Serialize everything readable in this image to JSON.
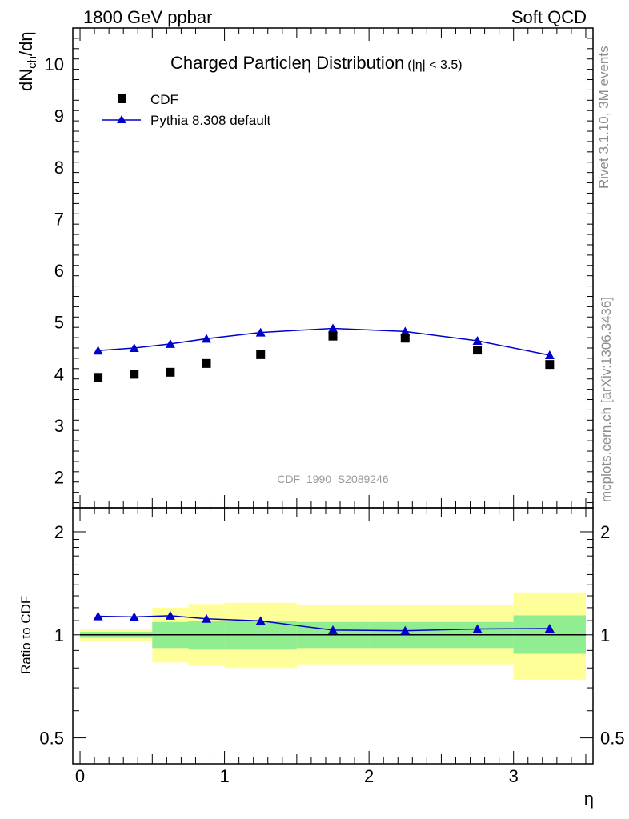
{
  "header": {
    "left": "1800 GeV ppbar",
    "right": "Soft QCD"
  },
  "side_labels": {
    "upper": "Rivet 3.1.10,  3M events",
    "lower": "mcplots.cern.ch [arXiv:1306.3436]"
  },
  "reference": "CDF_1990_S2089246",
  "chart_data": [
    {
      "type": "scatter",
      "title_main": "Charged Particle",
      "title_eta": "η",
      "title_rest": " Distribution",
      "title_cut": "(|η| < 3.5)",
      "ylabel": "dN",
      "ylabel_sub": "ch",
      "ylabel_tail": "/dη",
      "xlim": [
        -0.05,
        3.55
      ],
      "ylim": [
        1.4,
        10.7
      ],
      "yticks": [
        2,
        3,
        4,
        5,
        6,
        7,
        8,
        9,
        10
      ],
      "legend_placement": "top-left",
      "series": [
        {
          "name": "CDF",
          "marker": "square",
          "color": "#000000",
          "x": [
            0.125,
            0.375,
            0.625,
            0.875,
            1.25,
            1.75,
            2.25,
            2.75,
            3.25
          ],
          "y": [
            3.93,
            3.99,
            4.03,
            4.2,
            4.37,
            4.73,
            4.69,
            4.46,
            4.18
          ]
        },
        {
          "name": "Pythia 8.308 default",
          "marker": "triangle",
          "color": "#0000cc",
          "x": [
            0.125,
            0.375,
            0.625,
            0.875,
            1.25,
            1.75,
            2.25,
            2.75,
            3.25
          ],
          "y": [
            4.45,
            4.5,
            4.58,
            4.68,
            4.8,
            4.88,
            4.82,
            4.64,
            4.36
          ]
        }
      ]
    },
    {
      "type": "line",
      "ylabel": "Ratio to CDF",
      "xlabel": "η",
      "xlim": [
        -0.05,
        3.55
      ],
      "ylim": [
        0.42,
        2.35
      ],
      "log_y": true,
      "xticks": [
        0,
        1,
        2,
        3
      ],
      "yticks": [
        0.5,
        1,
        2
      ],
      "band_edges": [
        0,
        0.5,
        0.75,
        1,
        1.5,
        2,
        2.5,
        3,
        3.5
      ],
      "band_inner_lo": [
        0.98,
        0.915,
        0.905,
        0.905,
        0.915,
        0.915,
        0.915,
        0.88
      ],
      "band_inner_hi": [
        1.02,
        1.09,
        1.1,
        1.1,
        1.09,
        1.09,
        1.09,
        1.14
      ],
      "band_outer_lo": [
        0.96,
        0.83,
        0.81,
        0.8,
        0.82,
        0.82,
        0.82,
        0.74
      ],
      "band_outer_hi": [
        1.04,
        1.2,
        1.23,
        1.24,
        1.22,
        1.22,
        1.22,
        1.33
      ],
      "band_colors": {
        "inner": "#90ee90",
        "outer": "#ffff99"
      },
      "series": [
        {
          "name": "Pythia 8.308 default",
          "color": "#0000cc",
          "x": [
            0.125,
            0.375,
            0.625,
            0.875,
            1.25,
            1.75,
            2.25,
            2.75,
            3.25
          ],
          "y": [
            1.133,
            1.128,
            1.137,
            1.114,
            1.098,
            1.032,
            1.028,
            1.04,
            1.043
          ]
        }
      ]
    }
  ]
}
